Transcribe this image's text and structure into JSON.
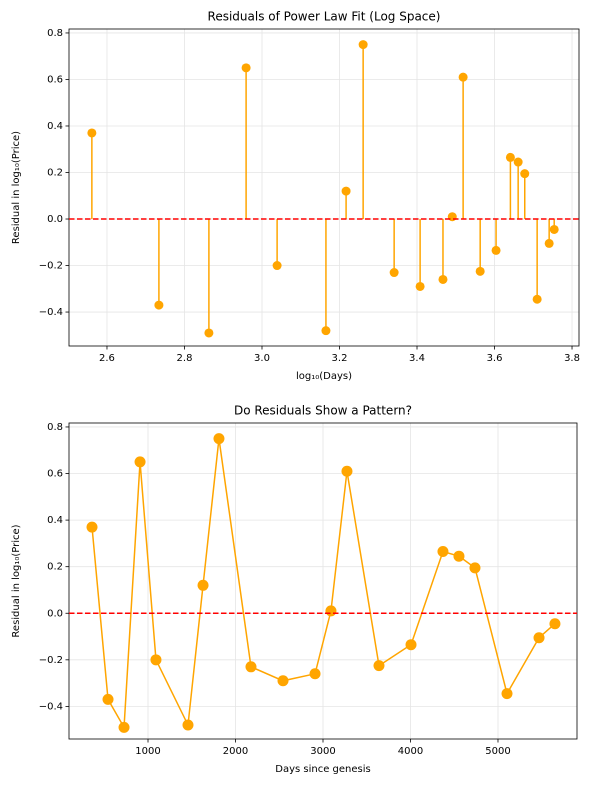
{
  "chart_data": [
    {
      "type": "stem",
      "title": "Residuals of Power Law Fit (Log Space)",
      "x_label": "log₁₀(Days)",
      "y_label": "Residual in log₁₀(Price)",
      "x": [
        2.561,
        2.734,
        2.863,
        2.959,
        3.039,
        3.165,
        3.217,
        3.261,
        3.341,
        3.408,
        3.467,
        3.491,
        3.519,
        3.563,
        3.604,
        3.641,
        3.661,
        3.678,
        3.71,
        3.741,
        3.754
      ],
      "values": [
        0.37,
        -0.37,
        -0.49,
        0.65,
        -0.2,
        -0.48,
        0.12,
        0.75,
        -0.23,
        -0.29,
        -0.26,
        0.01,
        0.61,
        -0.225,
        -0.135,
        0.265,
        0.245,
        0.195,
        -0.345,
        -0.105,
        -0.045
      ],
      "color": "#ffa500",
      "reference_line": {
        "value": 0,
        "color": "#ff0000"
      },
      "xlim": [
        2.502,
        3.818
      ],
      "xticks": [
        2.6,
        2.8,
        {
          "value": 3,
          "label": "3.0"
        },
        3.2,
        3.4,
        3.6,
        3.8
      ],
      "ylim": [
        -0.546,
        0.817
      ],
      "yticks": [
        {
          "value": -0.4,
          "label": "−0.4"
        },
        {
          "value": -0.2,
          "label": "−0.2"
        },
        {
          "value": 0,
          "label": "0.0"
        },
        0.2,
        0.4,
        0.6,
        0.8
      ],
      "grid": true
    },
    {
      "type": "line",
      "title": "Do Residuals Show a Pattern?",
      "x_label": "Days since genesis",
      "y_label": "Residual in log₁₀(Price)",
      "x": [
        360,
        543,
        726,
        909,
        1091,
        1457,
        1629,
        1811,
        2177,
        2543,
        2909,
        3091,
        3274,
        3640,
        4006,
        4371,
        4554,
        4737,
        5103,
        5469,
        5651
      ],
      "values": [
        0.37,
        -0.37,
        -0.49,
        0.65,
        -0.2,
        -0.48,
        0.12,
        0.75,
        -0.23,
        -0.29,
        -0.26,
        0.01,
        0.61,
        -0.225,
        -0.135,
        0.265,
        0.245,
        0.195,
        -0.345,
        -0.105,
        -0.045
      ],
      "color": "#ffa500",
      "reference_line": {
        "value": 0,
        "color": "#ff0000"
      },
      "xlim": [
        97,
        5903
      ],
      "xticks": [
        1000,
        2000,
        3000,
        4000,
        5000
      ],
      "ylim": [
        -0.54,
        0.817
      ],
      "yticks": [
        {
          "value": -0.4,
          "label": "−0.4"
        },
        {
          "value": -0.2,
          "label": "−0.2"
        },
        {
          "value": 0,
          "label": "0.0"
        },
        0.2,
        0.4,
        0.6,
        0.8
      ],
      "grid": true
    }
  ]
}
